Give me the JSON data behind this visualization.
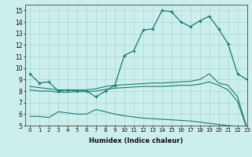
{
  "xlabel": "Humidex (Indice chaleur)",
  "bg_color": "#cceeed",
  "line_color": "#1a7a6e",
  "xlim": [
    -0.5,
    23
  ],
  "ylim": [
    5,
    15.5
  ],
  "yticks": [
    5,
    6,
    7,
    8,
    9,
    10,
    11,
    12,
    13,
    14,
    15
  ],
  "xticks": [
    0,
    1,
    2,
    3,
    4,
    5,
    6,
    7,
    8,
    9,
    10,
    11,
    12,
    13,
    14,
    15,
    16,
    17,
    18,
    19,
    20,
    21,
    22,
    23
  ],
  "curve1_x": [
    0,
    1,
    2,
    3,
    4,
    5,
    6,
    7,
    8,
    9,
    10,
    11,
    12,
    13,
    14,
    15,
    16,
    17,
    18,
    19,
    20,
    21,
    22,
    23
  ],
  "curve1_y": [
    9.5,
    8.7,
    8.8,
    8.0,
    8.1,
    8.0,
    8.0,
    7.5,
    8.0,
    8.5,
    11.1,
    11.5,
    13.3,
    13.4,
    15.0,
    14.9,
    14.0,
    13.6,
    14.1,
    14.5,
    13.4,
    12.1,
    9.5,
    9.0
  ],
  "curve2_x": [
    0,
    1,
    2,
    3,
    4,
    5,
    6,
    7,
    8,
    9,
    10,
    11,
    12,
    13,
    14,
    15,
    16,
    17,
    18,
    19,
    20,
    21,
    22,
    23
  ],
  "curve2_y": [
    8.4,
    8.3,
    8.2,
    8.1,
    8.1,
    8.1,
    8.1,
    8.2,
    8.4,
    8.5,
    8.55,
    8.6,
    8.65,
    8.7,
    8.7,
    8.75,
    8.8,
    8.85,
    9.0,
    9.5,
    8.7,
    8.5,
    7.5,
    4.8
  ],
  "curve3_x": [
    0,
    1,
    2,
    3,
    4,
    5,
    6,
    7,
    8,
    9,
    10,
    11,
    12,
    13,
    14,
    15,
    16,
    17,
    18,
    19,
    20,
    21,
    22,
    23
  ],
  "curve3_y": [
    8.1,
    8.0,
    8.0,
    7.9,
    7.9,
    7.95,
    7.95,
    8.0,
    8.15,
    8.25,
    8.3,
    8.35,
    8.4,
    8.4,
    8.4,
    8.45,
    8.5,
    8.5,
    8.6,
    8.8,
    8.5,
    8.1,
    7.1,
    4.7
  ],
  "curve4_x": [
    0,
    1,
    2,
    3,
    4,
    5,
    6,
    7,
    8,
    9,
    10,
    11,
    12,
    13,
    14,
    15,
    16,
    17,
    18,
    19,
    20,
    21,
    22,
    23
  ],
  "curve4_y": [
    5.8,
    5.8,
    5.7,
    6.2,
    6.1,
    6.0,
    6.0,
    6.4,
    6.2,
    6.0,
    5.85,
    5.75,
    5.65,
    5.6,
    5.55,
    5.5,
    5.45,
    5.4,
    5.3,
    5.2,
    5.1,
    5.0,
    4.95,
    4.7
  ]
}
